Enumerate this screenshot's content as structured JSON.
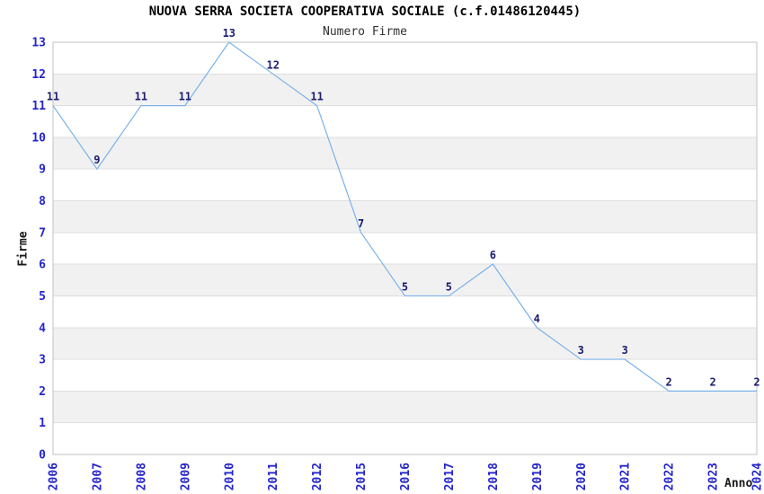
{
  "chart_data": {
    "type": "line",
    "title": "NUOVA SERRA SOCIETA COOPERATIVA SOCIALE (c.f.01486120445)",
    "subtitle": "Numero Firme",
    "xlabel": "Anno",
    "ylabel": "Firme",
    "categories": [
      "2006",
      "2007",
      "2008",
      "2009",
      "2010",
      "2011",
      "2012",
      "2015",
      "2016",
      "2017",
      "2018",
      "2019",
      "2020",
      "2021",
      "2022",
      "2023",
      "2024"
    ],
    "values": [
      11,
      9,
      11,
      11,
      13,
      12,
      11,
      7,
      5,
      5,
      6,
      4,
      3,
      3,
      2,
      2,
      2
    ],
    "point_labels": [
      "11",
      "9",
      "11",
      "11",
      "13",
      "12",
      "11",
      "7",
      "5",
      "5",
      "6",
      "4",
      "3",
      "3",
      "2",
      "2",
      "2"
    ],
    "ylim": [
      0,
      13
    ],
    "ytick_step": 1,
    "yticks": [
      "0",
      "1",
      "2",
      "3",
      "4",
      "5",
      "6",
      "7",
      "8",
      "9",
      "10",
      "11",
      "12",
      "13"
    ],
    "xtick_rotation": 90,
    "grid": true,
    "alternating_bands": true,
    "legend": "none",
    "markers": "none",
    "colors": {
      "line": "#7db2e8",
      "tick_label": "#2424cc",
      "point_label": "#1b1b70",
      "band": "#f1f1f1",
      "gridline": "#dedede",
      "plot_border": "#c2c2c2",
      "title": "#000000",
      "subtitle": "#303030",
      "axis_title": "#1a1a1a",
      "background": "#ffffff"
    }
  }
}
